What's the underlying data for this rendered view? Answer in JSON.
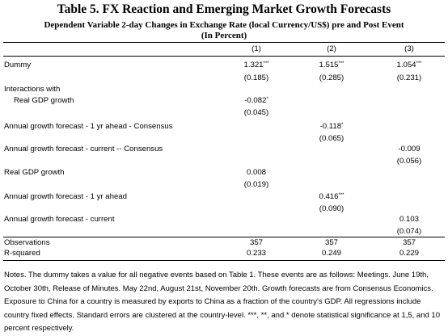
{
  "table": {
    "title": "Table 5. FX Reaction and Emerging Market Growth Forecasts",
    "subtitle_line1": "Dependent Variable 2-day Changes in Exchange Rate (local Currency/US$) pre and Post Event",
    "subtitle_line2": "(In Percent)",
    "columns": [
      "(1)",
      "(2)",
      "(3)"
    ],
    "rows": {
      "dummy": {
        "label": "Dummy",
        "c1": "1.321",
        "c1_sig": "***",
        "c1_se": "(0.185)",
        "c2": "1.515",
        "c2_sig": "***",
        "c2_se": "(0.285)",
        "c3": "1.054",
        "c3_sig": "***",
        "c3_se": "(0.231)"
      },
      "interactions_header": "Interactions with",
      "real_gdp_inter": {
        "label": "Real GDP growth",
        "c1": "-0.082",
        "c1_sig": "*",
        "c1_se": "(0.045)"
      },
      "forecast_1yr_consensus": {
        "label": "Annual growth forecast - 1 yr ahead - Consensus",
        "c2": "-0.118",
        "c2_sig": "*",
        "c2_se": "(0.065)"
      },
      "forecast_current_consensus": {
        "label": "Annual growth forecast - current -- Consensus",
        "c3": "-0.009",
        "c3_se": "(0.056)"
      },
      "real_gdp": {
        "label": "Real GDP growth",
        "c1": "0.008",
        "c1_se": "(0.019)"
      },
      "forecast_1yr": {
        "label": "Annual growth forecast - 1 yr ahead",
        "c2": "0.416",
        "c2_sig": "***",
        "c2_se": "(0.090)"
      },
      "forecast_current": {
        "label": "Annual growth forecast - current",
        "c3": "0.103",
        "c3_se": "(0.074)"
      },
      "observations": {
        "label": "Observations",
        "c1": "357",
        "c2": "357",
        "c3": "357"
      },
      "rsquared": {
        "label": "R-squared",
        "c1": "0.233",
        "c2": "0.249",
        "c3": "0.229"
      }
    }
  },
  "notes": "Notes. The dummy takes a value for all negative events based on Table 1. These events are as follows: Meetings. June 19th, October 30th, Release of Minutes. May 22nd, August 21st, November 20th. Growth forecasts are from Consensus Economics. Exposure to China for a country is measured by exports to China as a fraction of the country's GDP. All regressions include country fixed effects. Standard errors are clustered at the country-level. ***, **, and * denote statistical significance at 1,5, and 10 percent respectively."
}
